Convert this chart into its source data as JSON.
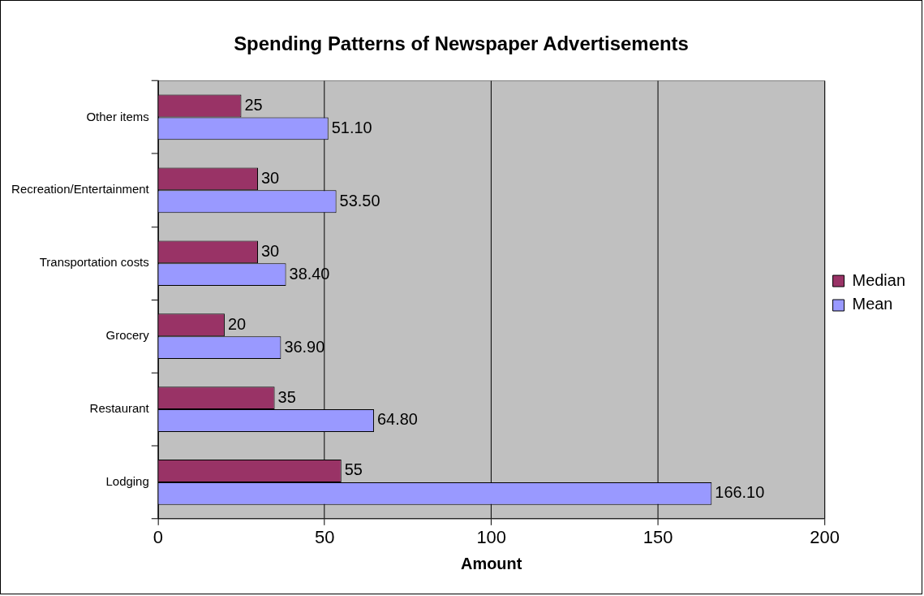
{
  "chart_data": {
    "type": "bar",
    "orientation": "horizontal",
    "title": "Spending Patterns of Newspaper Advertisements",
    "xlabel": "Amount",
    "categories": [
      "Other items",
      "Recreation/Entertainment",
      "Transportation costs",
      "Grocery",
      "Restaurant",
      "Lodging"
    ],
    "series": [
      {
        "name": "Median",
        "color": "#993366",
        "values": [
          25,
          30,
          30,
          20,
          35,
          55
        ],
        "value_labels": [
          "25",
          "30",
          "30",
          "20",
          "35",
          "55"
        ]
      },
      {
        "name": "Mean",
        "color": "#9999ff",
        "values": [
          51.1,
          53.5,
          38.4,
          36.9,
          64.8,
          166.1
        ],
        "value_labels": [
          "51.10",
          "53.50",
          "38.40",
          "36.90",
          "64.80",
          "166.10"
        ]
      }
    ],
    "xlim": [
      0,
      200
    ],
    "xticks": [
      0,
      50,
      100,
      150,
      200
    ],
    "grid": "x",
    "legend": "right"
  }
}
